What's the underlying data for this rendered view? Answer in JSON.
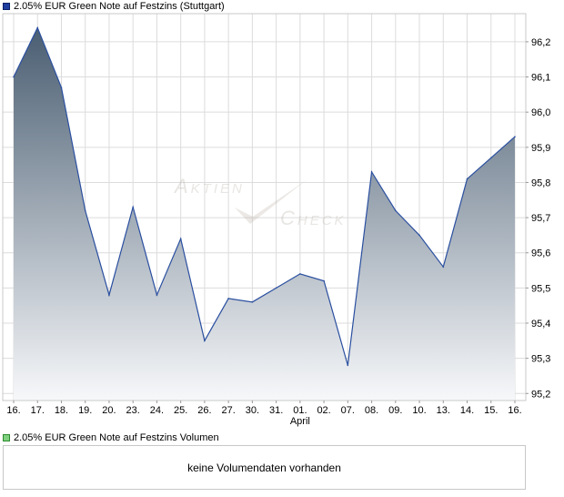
{
  "price_legend": {
    "label": "2.05% EUR Green Note auf Festzins (Stuttgart)"
  },
  "volume_legend": {
    "label": "2.05% EUR Green Note auf Festzins Volumen"
  },
  "volume_panel": {
    "message": "keine Volumendaten vorhanden"
  },
  "watermark": {
    "line1": "Aktien",
    "line2": "Check"
  },
  "colors": {
    "line": "#2a4fa0",
    "fill_top": "#4a5e72",
    "fill_bottom": "#f7f8fa",
    "grid": "#dcdcdc",
    "price_swatch": "#1f3f9f",
    "volume_swatch": "#7fd07f"
  },
  "chart_data": {
    "type": "area",
    "x": [
      "16.",
      "17.",
      "18.",
      "19.",
      "20.",
      "23.",
      "24.",
      "25.",
      "26.",
      "27.",
      "30.",
      "31.",
      "01.",
      "02.",
      "07.",
      "08.",
      "09.",
      "10.",
      "13.",
      "14.",
      "15.",
      "16."
    ],
    "x_annotation": {
      "index": 12,
      "text": "April"
    },
    "series": [
      {
        "values": [
          96.1,
          96.24,
          96.07,
          95.72,
          95.48,
          95.73,
          95.48,
          95.64,
          95.35,
          95.47,
          95.46,
          95.5,
          95.54,
          95.52,
          95.28,
          95.83,
          95.72,
          95.65,
          95.56,
          95.81,
          95.87,
          95.93
        ]
      }
    ],
    "y_ticks": [
      "96,2",
      "96,1",
      "96,0",
      "95,9",
      "95,8",
      "95,7",
      "95,6",
      "95,5",
      "95,4",
      "95,3",
      "95,2"
    ],
    "ylim": [
      95.18,
      96.28
    ],
    "y_axis_side": "right",
    "grid": true
  }
}
